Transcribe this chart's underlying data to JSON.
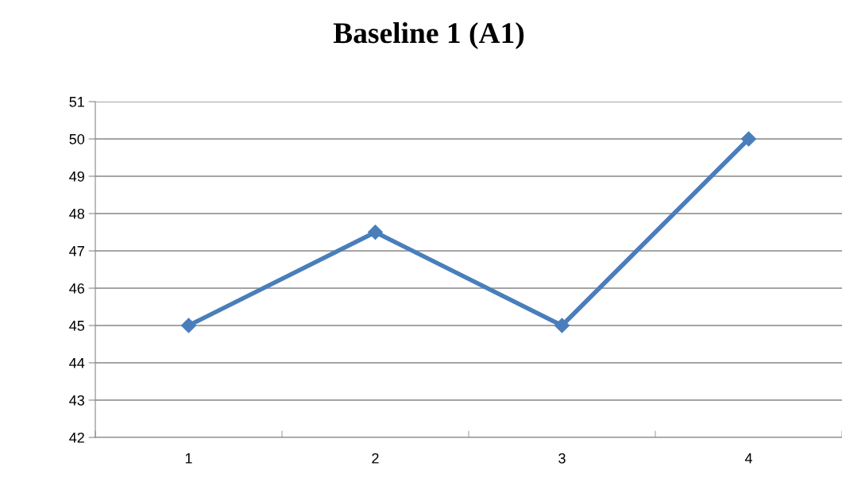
{
  "chart_data": {
    "type": "line",
    "title": "Baseline 1 (A1)",
    "categories": [
      "1",
      "2",
      "3",
      "4"
    ],
    "series": [
      {
        "color": "#4a7ebb",
        "values": [
          45,
          47.5,
          45,
          50
        ]
      }
    ],
    "ylim": [
      42,
      51
    ],
    "yticks": [
      42,
      43,
      44,
      45,
      46,
      47,
      48,
      49,
      50,
      51
    ],
    "grid": "y",
    "marker": "diamond",
    "line_style": "solid"
  }
}
